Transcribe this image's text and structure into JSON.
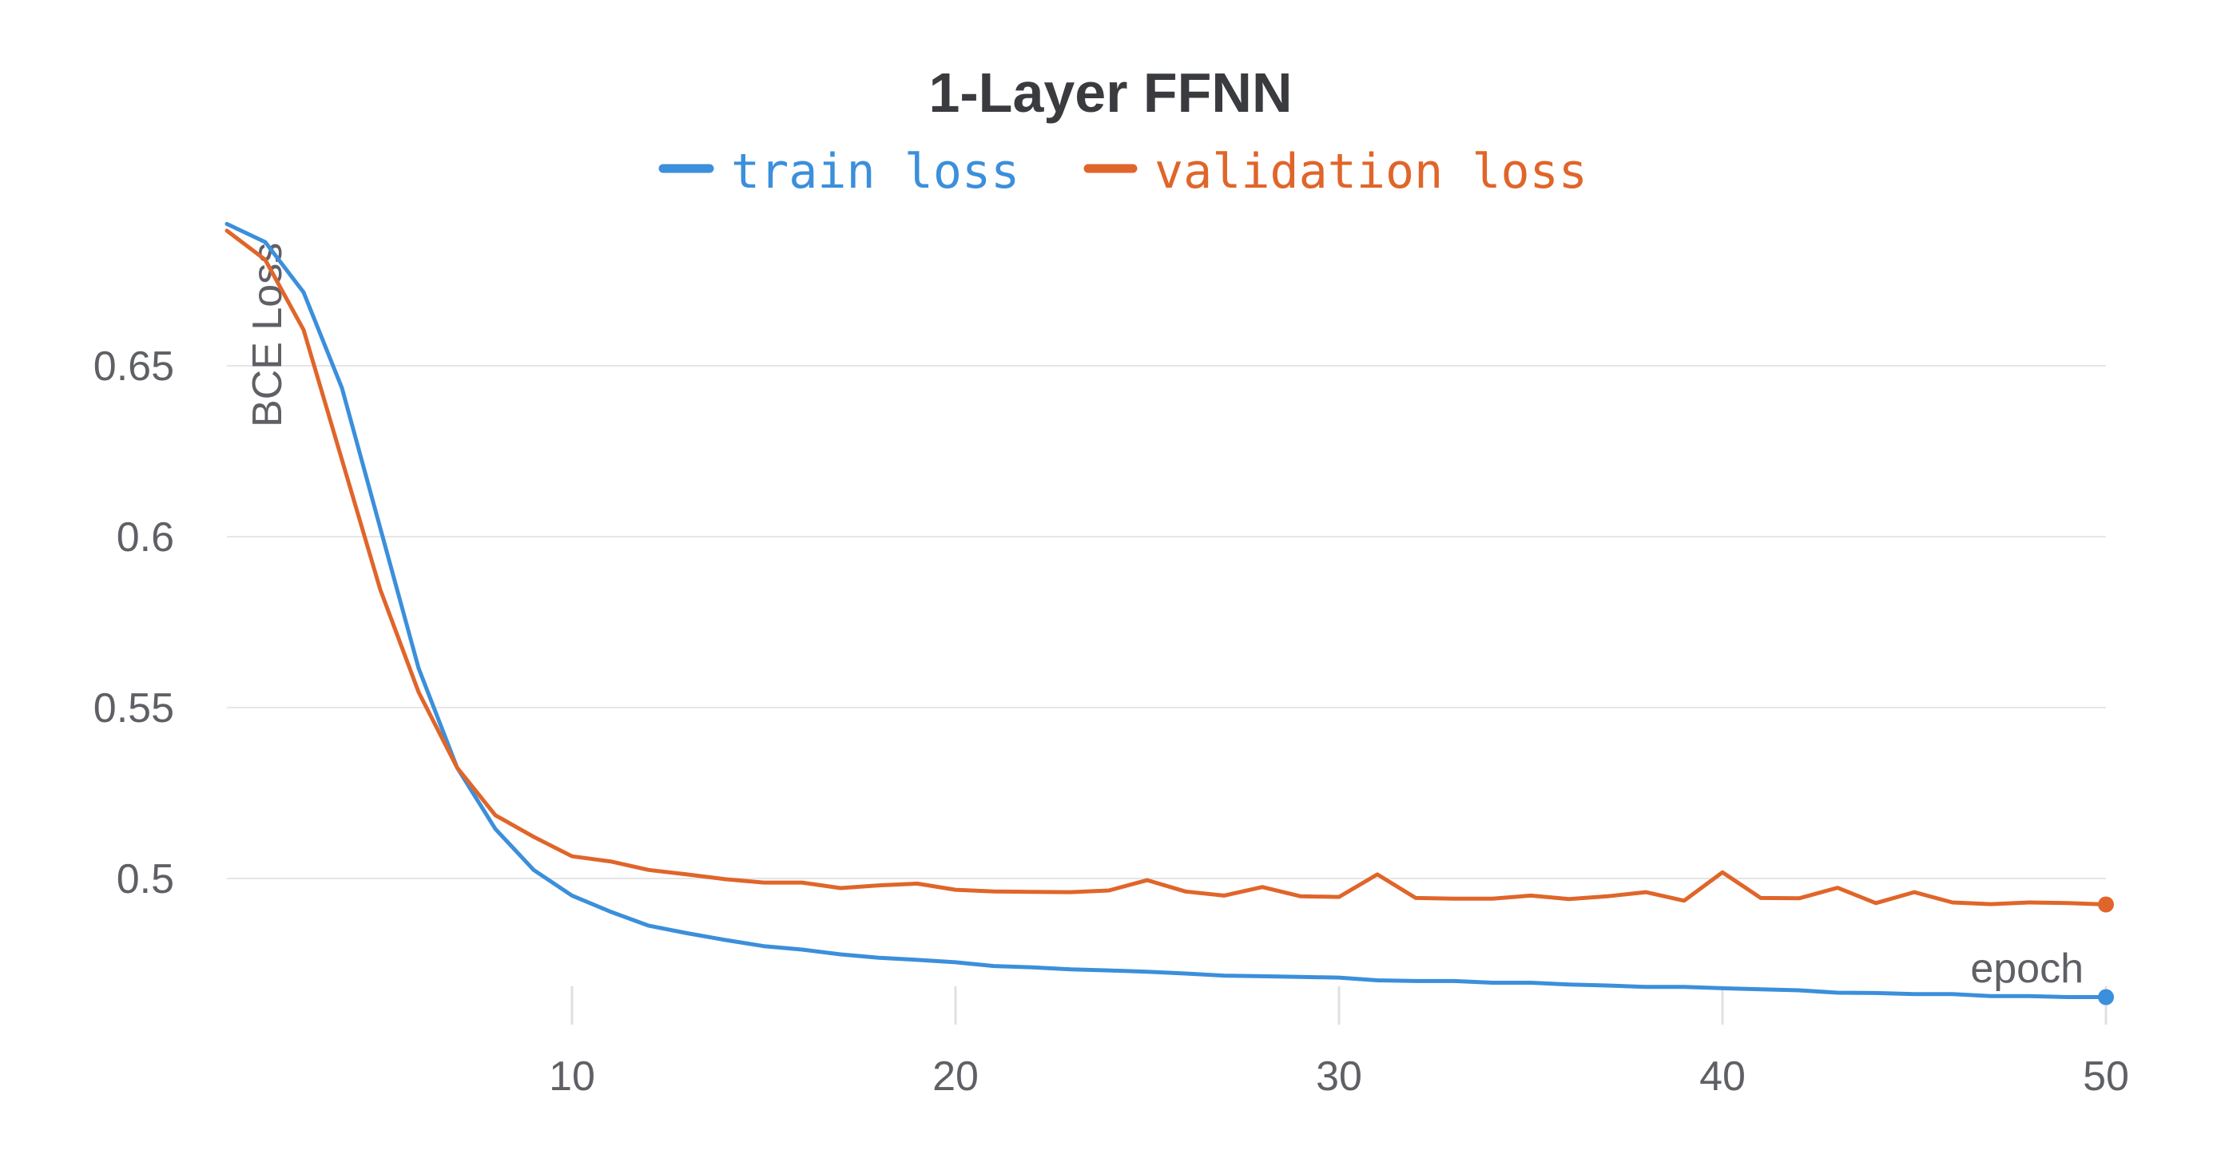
{
  "chart_data": {
    "type": "line",
    "title": "1-Layer FFNN",
    "xlabel": "epoch",
    "ylabel": "BCE Loss",
    "xlim": [
      1,
      50
    ],
    "ylim": [
      0.462,
      0.69
    ],
    "x_ticks": [
      10,
      20,
      30,
      40,
      50
    ],
    "y_ticks": [
      0.5,
      0.55,
      0.6,
      0.65
    ],
    "x_tick_labels": [
      "10",
      "20",
      "30",
      "40",
      "50"
    ],
    "y_tick_labels": [
      "0.5",
      "0.55",
      "0.6",
      "0.65"
    ],
    "grid": "horizontal",
    "legend": "top-center",
    "x": [
      1,
      2,
      3,
      4,
      5,
      6,
      7,
      8,
      9,
      10,
      11,
      12,
      13,
      14,
      15,
      16,
      17,
      18,
      19,
      20,
      21,
      22,
      23,
      24,
      25,
      26,
      27,
      28,
      29,
      30,
      31,
      32,
      33,
      34,
      35,
      36,
      37,
      38,
      39,
      40,
      41,
      42,
      43,
      44,
      45,
      46,
      47,
      48,
      49,
      50
    ],
    "series": [
      {
        "name": "train loss",
        "color": "#3b8fdb",
        "values": [
          0.6915,
          0.6862,
          0.6715,
          0.6435,
          0.6025,
          0.5615,
          0.5325,
          0.5145,
          0.5025,
          0.495,
          0.4903,
          0.4862,
          0.484,
          0.482,
          0.4802,
          0.4792,
          0.4778,
          0.4768,
          0.4762,
          0.4755,
          0.4744,
          0.474,
          0.4734,
          0.4731,
          0.4727,
          0.4722,
          0.4716,
          0.4714,
          0.4712,
          0.471,
          0.4702,
          0.47,
          0.47,
          0.4695,
          0.4695,
          0.469,
          0.4687,
          0.4683,
          0.4683,
          0.4679,
          0.4676,
          0.4673,
          0.4666,
          0.4665,
          0.4662,
          0.4662,
          0.4656,
          0.4656,
          0.4653,
          0.4653
        ]
      },
      {
        "name": "validation loss",
        "color": "#e0652a",
        "values": [
          0.6895,
          0.681,
          0.6605,
          0.6225,
          0.5845,
          0.5545,
          0.5325,
          0.5185,
          0.5122,
          0.5065,
          0.505,
          0.5025,
          0.5012,
          0.4998,
          0.4988,
          0.4988,
          0.4972,
          0.498,
          0.4985,
          0.4967,
          0.4962,
          0.4961,
          0.496,
          0.4965,
          0.4995,
          0.4962,
          0.495,
          0.4975,
          0.4948,
          0.4946,
          0.5012,
          0.4943,
          0.4941,
          0.4941,
          0.495,
          0.494,
          0.4948,
          0.496,
          0.4935,
          0.5018,
          0.4943,
          0.4942,
          0.4973,
          0.4928,
          0.496,
          0.493,
          0.4925,
          0.493,
          0.4928,
          0.4924
        ]
      }
    ]
  }
}
